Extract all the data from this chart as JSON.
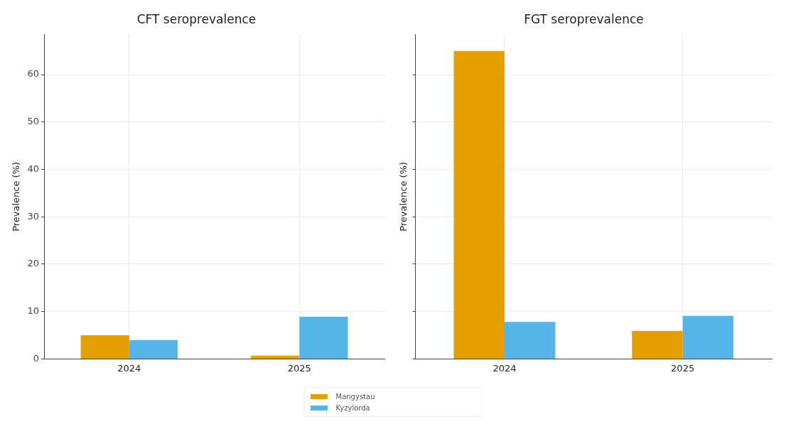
{
  "chart_data": [
    {
      "type": "bar",
      "title": "CFT seroprevalence",
      "ylabel": "Prevalence (%)",
      "categories": [
        "2024",
        "2025"
      ],
      "ylim": [
        0,
        68.5
      ],
      "yticks": [
        0,
        10,
        20,
        30,
        40,
        50,
        60
      ],
      "grid": true,
      "legend": "bottom",
      "series": [
        {
          "name": "Mangystau",
          "color": "#e69f00",
          "values": [
            5,
            0.7
          ]
        },
        {
          "name": "Kyzylorda",
          "color": "#56b4e9",
          "values": [
            4,
            8.9
          ]
        }
      ]
    },
    {
      "type": "bar",
      "title": "FGT seroprevalence",
      "ylabel": "Prevalence (%)",
      "categories": [
        "2024",
        "2025"
      ],
      "ylim": [
        0,
        68.5
      ],
      "yticks": [
        0,
        10,
        20,
        30,
        40,
        50,
        60
      ],
      "grid": true,
      "tick_labels": "x",
      "series": [
        {
          "color": "#e69f00",
          "values": [
            65,
            5.9
          ]
        },
        {
          "color": "#56b4e9",
          "values": [
            7.8,
            9.1
          ]
        }
      ]
    }
  ]
}
